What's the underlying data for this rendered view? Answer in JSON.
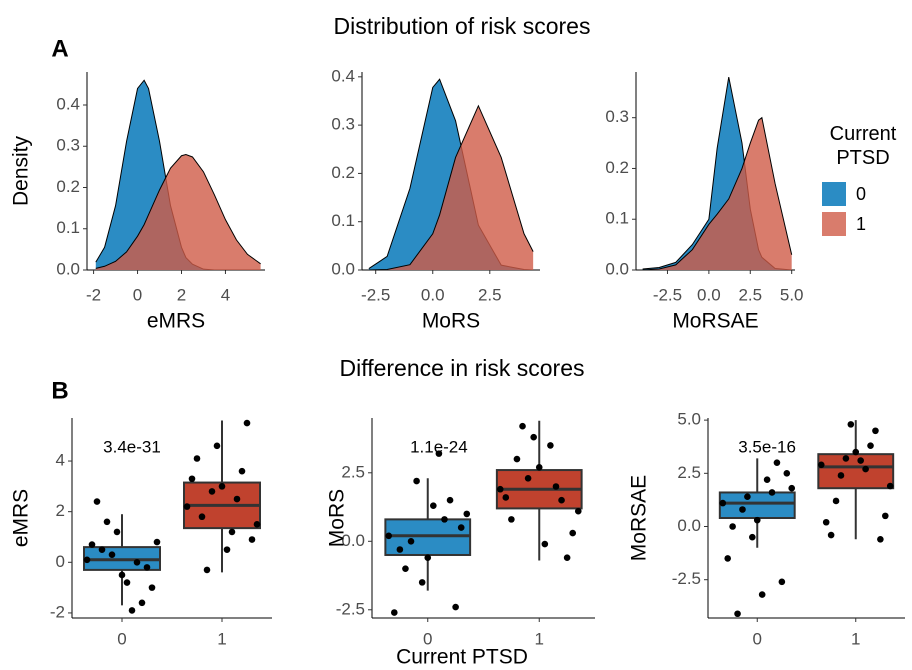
{
  "figure": {
    "title_a": "Distribution of risk scores",
    "title_b": "Difference in risk scores",
    "panel_a": "A",
    "panel_b": "B",
    "legend_title": "Current PTSD"
  },
  "chart_data": [
    {
      "type": "density",
      "xlabel": "eMRS",
      "ylabel": "Density",
      "x": [
        -1.9,
        -1.5,
        -1,
        -0.5,
        0,
        0.3,
        0.5,
        1,
        1.5,
        2,
        2.2,
        2.5,
        3,
        3.5,
        4,
        4.5,
        5,
        5.6
      ],
      "series": [
        {
          "name": "0",
          "color": "#2b8cc4",
          "values": [
            0.019,
            0.055,
            0.156,
            0.312,
            0.44,
            0.46,
            0.44,
            0.312,
            0.156,
            0.055,
            0.03,
            0.014,
            0.002,
            0,
            0,
            0,
            0,
            0
          ]
        },
        {
          "name": "1",
          "color": "#cf5b47",
          "values": [
            0.004,
            0.009,
            0.021,
            0.044,
            0.082,
            0.11,
            0.134,
            0.194,
            0.247,
            0.277,
            0.28,
            0.274,
            0.238,
            0.182,
            0.122,
            0.073,
            0.038,
            0.015
          ]
        }
      ],
      "xlim": [
        -2.3,
        5.8
      ],
      "ylim": [
        0,
        0.48
      ],
      "xticks": [
        -2,
        0,
        2,
        4
      ],
      "yticks": [
        {
          "value": 0,
          "label": "0.0"
        },
        0.1,
        0.2,
        0.3,
        0.4
      ]
    },
    {
      "type": "density",
      "xlabel": "MoRS",
      "x": [
        -2.8,
        -2,
        -1,
        0,
        0.3,
        1,
        2,
        3,
        4,
        4.4
      ],
      "series": [
        {
          "name": "0",
          "color": "#2b8cc4",
          "values": [
            0.003,
            0.028,
            0.169,
            0.378,
            0.395,
            0.309,
            0.093,
            0.01,
            0.001,
            0
          ]
        },
        {
          "name": "1",
          "color": "#cf5b47",
          "values": [
            0,
            0.001,
            0.011,
            0.075,
            0.114,
            0.233,
            0.34,
            0.233,
            0.075,
            0.038
          ]
        }
      ],
      "xlim": [
        -3.1,
        4.7
      ],
      "ylim": [
        0,
        0.41
      ],
      "xticks": [
        -2.5,
        {
          "value": 0,
          "label": "0.0"
        },
        2.5
      ],
      "yticks": [
        {
          "value": 0,
          "label": "0.0"
        },
        0.1,
        0.2,
        0.3,
        0.4
      ]
    },
    {
      "type": "density",
      "xlabel": "MoRSAE",
      "x": [
        -4,
        -3,
        -2,
        -1,
        0,
        0.5,
        1.2,
        2,
        2.5,
        3,
        3.2,
        4,
        5
      ],
      "series": [
        {
          "name": "0",
          "color": "#2b8cc4",
          "values": [
            0.002,
            0.005,
            0.015,
            0.05,
            0.1,
            0.24,
            0.38,
            0.25,
            0.12,
            0.04,
            0.025,
            0.003,
            0
          ]
        },
        {
          "name": "1",
          "color": "#cf5b47",
          "values": [
            0,
            0.002,
            0.01,
            0.04,
            0.09,
            0.11,
            0.14,
            0.2,
            0.25,
            0.295,
            0.3,
            0.17,
            0.03
          ]
        }
      ],
      "xlim": [
        -4.4,
        5.2
      ],
      "ylim": [
        0,
        0.39
      ],
      "xticks": [
        -2.5,
        {
          "value": 0,
          "label": "0.0"
        },
        2.5,
        {
          "value": 5,
          "label": "5.0"
        }
      ],
      "yticks": [
        {
          "value": 0,
          "label": "0.0"
        },
        0.1,
        0.2,
        0.3
      ]
    },
    {
      "type": "box",
      "ylabel": "eMRS",
      "annotation": "3.4e-31",
      "categories": [
        "0",
        "1"
      ],
      "colors": [
        "#2b8cc4",
        "#c0422e"
      ],
      "ylim": [
        -2.2,
        5.7
      ],
      "yticks": [
        -2,
        0,
        2,
        4
      ],
      "groups": [
        {
          "whisker_low": -1.7,
          "q1": -0.3,
          "median": 0.1,
          "q3": 0.6,
          "whisker_high": 1.9,
          "points": [
            0.1,
            -0.5,
            0.8,
            1.2,
            -1.0,
            0.3,
            -0.2,
            1.6,
            -1.6,
            0.5,
            0.0,
            2.4,
            -1.9,
            0.7,
            -0.8
          ]
        },
        {
          "whisker_low": -0.4,
          "q1": 1.35,
          "median": 2.25,
          "q3": 3.15,
          "whisker_high": 5.6,
          "points": [
            2.2,
            3.0,
            1.5,
            4.6,
            0.9,
            2.8,
            5.5,
            -0.3,
            3.6,
            1.8,
            2.5,
            4.1,
            1.2,
            3.3,
            0.5
          ]
        }
      ]
    },
    {
      "type": "box",
      "ylabel": "MoRS",
      "xlabel": "Current PTSD",
      "annotation": "1.1e-24",
      "categories": [
        "0",
        "1"
      ],
      "colors": [
        "#2b8cc4",
        "#c0422e"
      ],
      "ylim": [
        -2.8,
        4.5
      ],
      "yticks": [
        -2.5,
        {
          "value": 0,
          "label": "0.0"
        },
        2.5
      ],
      "groups": [
        {
          "whisker_low": -1.8,
          "q1": -0.5,
          "median": 0.2,
          "q3": 0.8,
          "whisker_high": 2.3,
          "points": [
            0.2,
            -0.6,
            1.0,
            -1.5,
            0.5,
            2.2,
            -2.4,
            0.0,
            1.5,
            -1.0,
            0.8,
            -0.3,
            3.2,
            -2.6,
            1.3
          ]
        },
        {
          "whisker_low": -0.7,
          "q1": 1.2,
          "median": 1.9,
          "q3": 2.6,
          "whisker_high": 4.4,
          "points": [
            1.9,
            2.7,
            1.1,
            3.8,
            0.3,
            2.3,
            -0.6,
            4.2,
            1.5,
            3.0,
            2.0,
            0.8,
            3.5,
            1.6,
            -0.1
          ]
        }
      ]
    },
    {
      "type": "box",
      "ylabel": "MoRSAE",
      "annotation": "3.5e-16",
      "categories": [
        "0",
        "1"
      ],
      "colors": [
        "#2b8cc4",
        "#c0422e"
      ],
      "ylim": [
        -4.3,
        5.1
      ],
      "yticks": [
        -2.5,
        {
          "value": 0,
          "label": "0.0"
        },
        2.5,
        {
          "value": 5,
          "label": "5.0"
        }
      ],
      "groups": [
        {
          "whisker_low": -1.0,
          "q1": 0.4,
          "median": 1.1,
          "q3": 1.6,
          "whisker_high": 3.2,
          "points": [
            1.1,
            0.3,
            1.8,
            -0.5,
            2.5,
            1.4,
            -2.6,
            0.8,
            3.0,
            -4.1,
            1.6,
            0.0,
            2.2,
            -1.5,
            -3.2
          ]
        },
        {
          "whisker_low": -0.6,
          "q1": 1.8,
          "median": 2.8,
          "q3": 3.4,
          "whisker_high": 5.0,
          "points": [
            2.9,
            3.5,
            1.9,
            4.8,
            0.5,
            3.2,
            -0.6,
            2.4,
            4.5,
            1.2,
            3.8,
            -0.4,
            2.7,
            0.2,
            3.1
          ]
        }
      ]
    }
  ]
}
